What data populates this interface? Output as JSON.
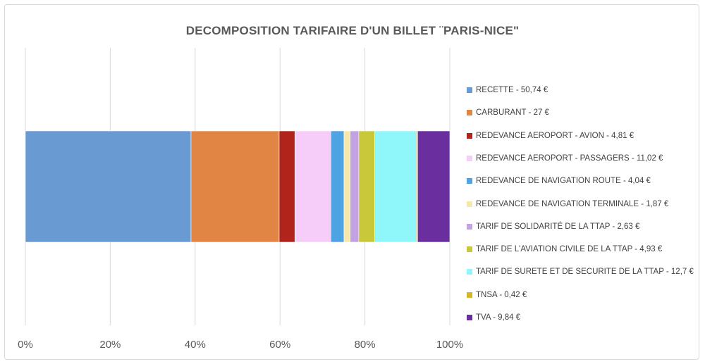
{
  "chart_data": {
    "type": "bar",
    "orientation": "horizontal",
    "stacked": "100%",
    "title": "DECOMPOSITION TARIFAIRE D'UN BILLET ¨PARIS-NICE\"",
    "xlim": [
      0,
      100
    ],
    "xticks": [
      "0%",
      "20%",
      "40%",
      "60%",
      "80%",
      "100%"
    ],
    "grid": true,
    "legend_position": "right",
    "series": [
      {
        "name": "RECETTE - 50,74 €",
        "value": 50.74,
        "color": "#6a9ad2"
      },
      {
        "name": "CARBURANT - 27 €",
        "value": 27,
        "color": "#e08544"
      },
      {
        "name": "REDEVANCE AEROPORT - AVION - 4,81 €",
        "value": 4.81,
        "color": "#b0241b"
      },
      {
        "name": "REDEVANCE AEROPORT - PASSAGERS - 11,02 €",
        "value": 11.02,
        "color": "#f6cdf8"
      },
      {
        "name": "REDEVANCE DE NAVIGATION ROUTE - 4,04 €",
        "value": 4.04,
        "color": "#4ea3e2"
      },
      {
        "name": "REDEVANCE DE NAVIGATION TERMINALE - 1,87 €",
        "value": 1.87,
        "color": "#f7e7a8"
      },
      {
        "name": "TARIF DE SOLIDARITÉ  DE LA TTAP - 2,63 €",
        "value": 2.63,
        "color": "#c3a2e3"
      },
      {
        "name": "TARIF DE L'AVIATION CIVILE DE LA TTAP - 4,93 €",
        "value": 4.93,
        "color": "#c9c73a"
      },
      {
        "name": "TARIF DE SURETE ET DE SECURITE DE LA TTAP  - 12,7 €",
        "value": 12.7,
        "color": "#8ff6f9"
      },
      {
        "name": "TNSA  - 0,42 €",
        "value": 0.42,
        "color": "#d2b72c"
      },
      {
        "name": "TVA  - 9,84 €",
        "value": 9.84,
        "color": "#6a2e9e"
      }
    ]
  }
}
